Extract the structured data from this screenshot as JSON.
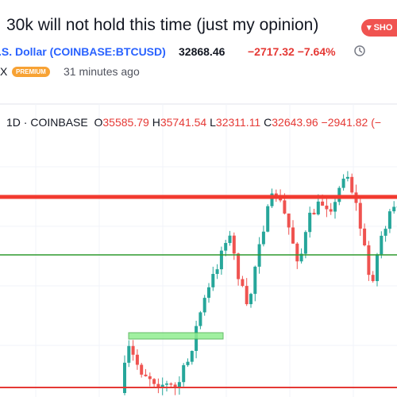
{
  "post": {
    "title": "30k will not hold this time (just my opinion)",
    "button": "SHO",
    "symbol": ".S. Dollar (COINBASE:BTCUSD)",
    "last": "32868.46",
    "change": "−2717.32",
    "change_pct": "−7.64%",
    "author": "X",
    "badge": "PREMIUM",
    "time": "31 minutes ago"
  },
  "chart_header": {
    "interval": "1D",
    "exchange": "COINBASE",
    "open_label": "O",
    "open": "35585.79",
    "high_label": "H",
    "high": "35741.54",
    "low_label": "L",
    "low": "32311.11",
    "close_label": "C",
    "close": "32643.96",
    "change": "−2941.82 (−"
  }
}
